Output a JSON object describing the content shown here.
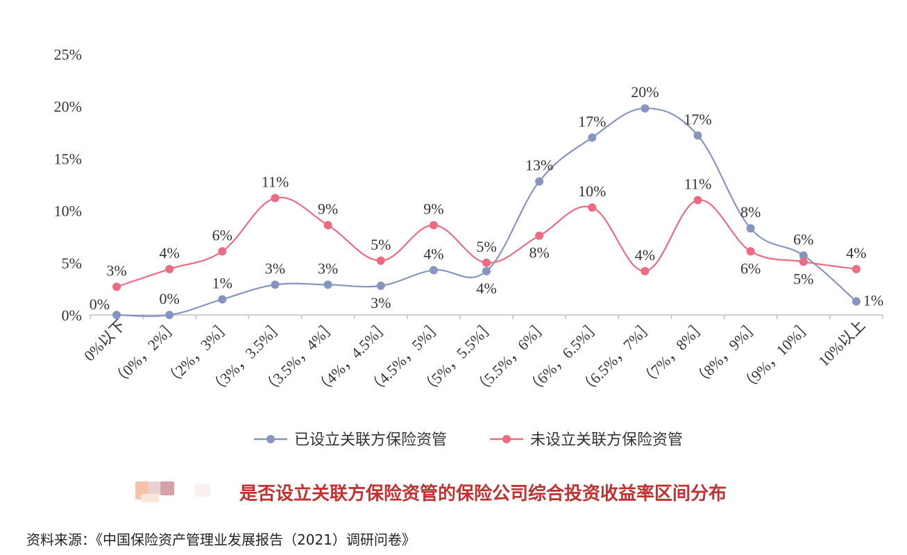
{
  "chart_data": {
    "type": "line",
    "title": "是否设立关联方保险资管的保险公司综合投资收益率区间分布",
    "categories": [
      "0%以下",
      "（0%，2%］",
      "（2%，3%］",
      "（3%，3.5%］",
      "（3.5%，4%］",
      "（4%，4.5%］",
      "（4.5%，5%］",
      "（5%，5.5%］",
      "（5.5%，6%］",
      "（6%，6.5%］",
      "（6.5%，7%］",
      "（7%，8%］",
      "（8%，9%］",
      "（9%，10%］",
      "10%以上"
    ],
    "y_ticks": [
      "0%",
      "5%",
      "10%",
      "15%",
      "20%",
      "25%"
    ],
    "ylim": [
      0,
      25
    ],
    "grid": false,
    "legend_position": "bottom",
    "series": [
      {
        "name": "已设立关联方保险资管",
        "color": "#8496c0",
        "values": [
          0,
          0,
          1.5,
          2.9,
          2.9,
          2.8,
          4.3,
          4.2,
          12.8,
          17.0,
          19.8,
          17.2,
          8.3,
          5.7,
          1.3
        ],
        "labels": [
          "0%",
          "0%",
          "1%",
          "3%",
          "3%",
          "3%",
          "4%",
          "4%",
          "13%",
          "17%",
          "20%",
          "17%",
          "8%",
          "6%",
          "1%"
        ]
      },
      {
        "name": "未设立关联方保险资管",
        "color": "#ec6b80",
        "values": [
          2.7,
          4.4,
          6.1,
          11.2,
          8.6,
          5.2,
          8.6,
          5.0,
          7.6,
          10.3,
          4.2,
          11.0,
          6.1,
          5.1,
          4.4
        ],
        "labels": [
          "3%",
          "4%",
          "6%",
          "11%",
          "9%",
          "5%",
          "9%",
          "5%",
          "8%",
          "10%",
          "4%",
          "11%",
          "6%",
          "5%",
          "4%"
        ]
      }
    ]
  },
  "source_note": "资料来源：《中国保险资产管理业发展报告（2021）调研问卷》"
}
